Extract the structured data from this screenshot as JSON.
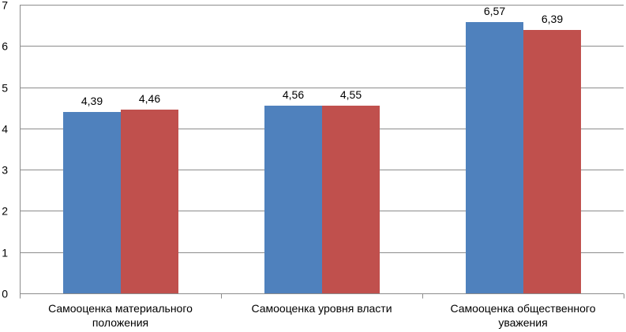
{
  "chart_data": {
    "type": "bar",
    "title": "",
    "xlabel": "",
    "ylabel": "",
    "categories": [
      "Самооценка материального положения",
      "Самооценка уровня власти",
      "Самооценка общественного уважения"
    ],
    "category_lines": [
      [
        "Самооценка материального",
        "положения"
      ],
      [
        "Самооценка уровня власти"
      ],
      [
        "Самооценка общественного",
        "уважения"
      ]
    ],
    "series": [
      {
        "color": "#4f81bd",
        "values": [
          4.39,
          4.56,
          6.57
        ],
        "labels": [
          "4,39",
          "4,56",
          "6,57"
        ]
      },
      {
        "color": "#c0504d",
        "values": [
          4.46,
          4.55,
          6.39
        ],
        "labels": [
          "4,46",
          "4,55",
          "6,39"
        ]
      }
    ],
    "ylim": [
      0,
      7
    ],
    "yticks": [
      0,
      1,
      2,
      3,
      4,
      5,
      6,
      7
    ],
    "grid": true,
    "legend": "none"
  }
}
